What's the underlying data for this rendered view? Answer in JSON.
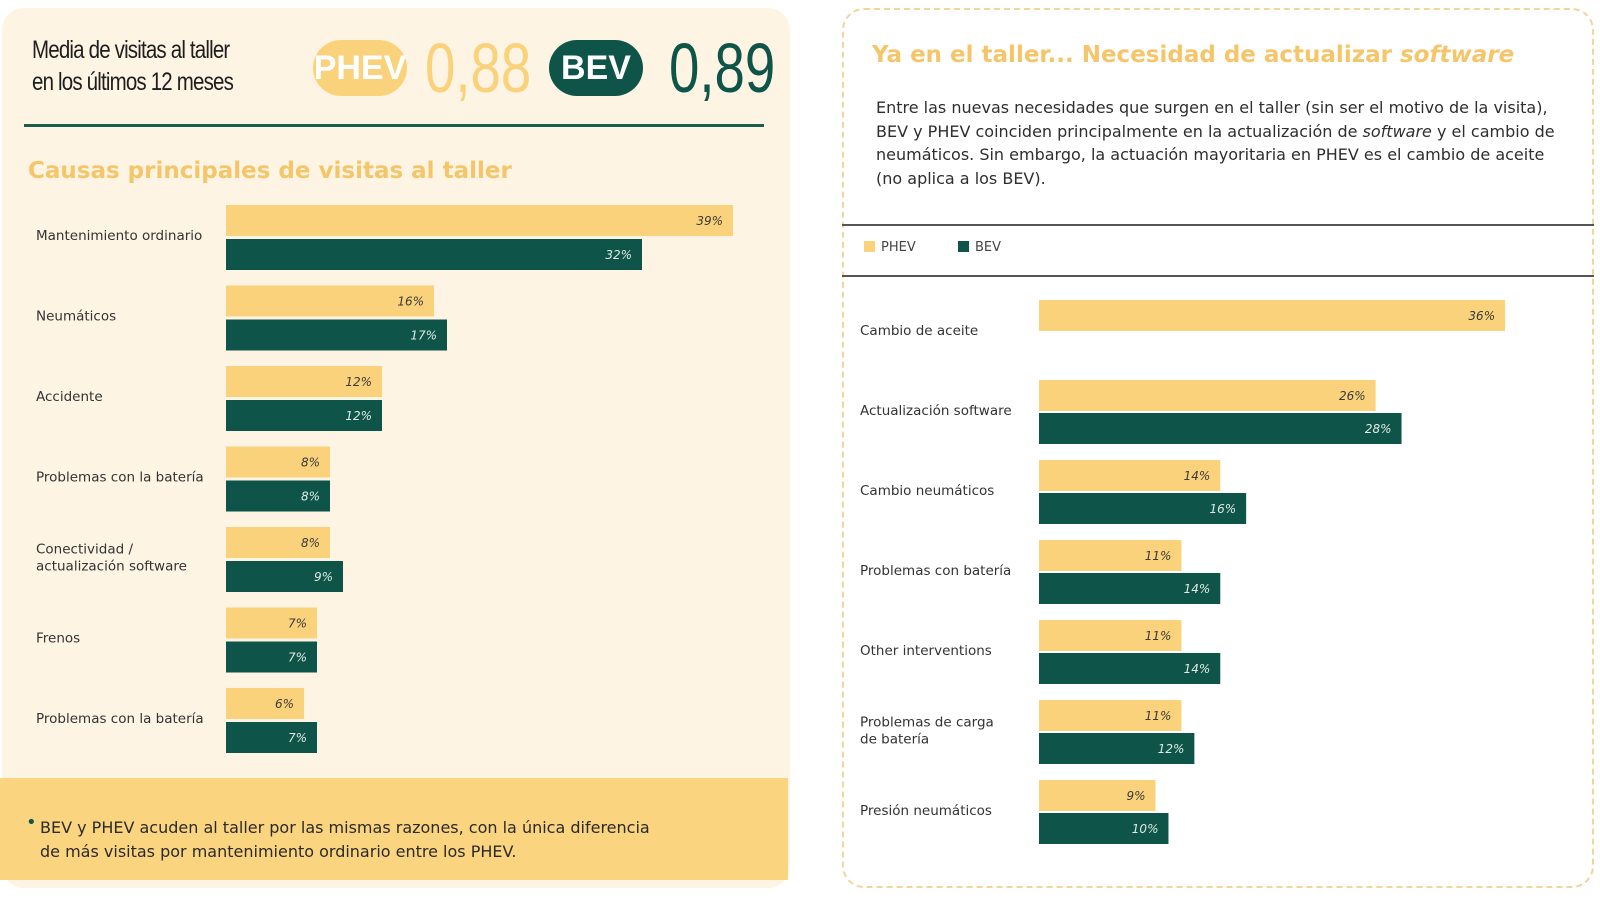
{
  "header": {
    "avg_label_line1": "Media de visitas al taller",
    "avg_label_line2": "en los últimos 12 meses",
    "phev_badge": "PHEV",
    "phev_value": "0,88",
    "bev_badge": "BEV",
    "bev_value": "0,89"
  },
  "left_panel": {
    "subtitle": "Causas principales de visitas al taller",
    "footer_bullet": "•",
    "footer_line1": "BEV y PHEV acuden al taller por las mismas razones, con la única diferencia",
    "footer_line2": "de más visitas por mantenimiento ordinario entre los PHEV."
  },
  "right_panel": {
    "title_text": "Ya en el taller... Necesidad de actualizar ",
    "title_emph": "software",
    "desc_1": "Entre las nuevas necesidades que surgen en el taller (sin ser el motivo de la visita), BEV y PHEV coinciden principalmente en la actualización de ",
    "desc_emph": "software",
    "desc_2": " y el cambio de neumáticos. Sin embargo, la actuación mayoritaria en PHEV es el cambio de aceite (no aplica a los BEV).",
    "legend_phev": "PHEV",
    "legend_bev": "BEV"
  },
  "colors": {
    "phev": "#fad27c",
    "bev": "#0f5448",
    "accent_text": "#f5c56a"
  },
  "chart_data": [
    {
      "type": "bar",
      "orientation": "horizontal",
      "title": "Causas principales de visitas al taller",
      "categories": [
        [
          "Mantenimiento ordinario"
        ],
        [
          "Neumáticos"
        ],
        [
          "Accidente"
        ],
        [
          "Problemas con la batería"
        ],
        [
          "Conectividad /",
          "actualización software"
        ],
        [
          "Frenos"
        ],
        [
          "Problemas con la batería"
        ]
      ],
      "series": [
        {
          "name": "PHEV",
          "values": [
            39,
            16,
            12,
            8,
            8,
            7,
            6
          ]
        },
        {
          "name": "BEV",
          "values": [
            32,
            17,
            12,
            8,
            9,
            7,
            7
          ]
        }
      ],
      "value_suffix": "%",
      "xlim": [
        0,
        40
      ]
    },
    {
      "type": "bar",
      "orientation": "horizontal",
      "categories": [
        [
          "Cambio de aceite"
        ],
        [
          "Actualización software"
        ],
        [
          "Cambio neumáticos"
        ],
        [
          "Problemas con batería"
        ],
        [
          "Other interventions"
        ],
        [
          "Problemas de carga",
          "de batería"
        ],
        [
          "Presión neumáticos"
        ]
      ],
      "series": [
        {
          "name": "PHEV",
          "values": [
            36,
            26,
            14,
            11,
            11,
            11,
            9
          ]
        },
        {
          "name": "BEV",
          "values": [
            null,
            28,
            16,
            14,
            14,
            12,
            10
          ]
        }
      ],
      "value_suffix": "%",
      "xlim": [
        0,
        38
      ],
      "legend": "top-left"
    }
  ]
}
